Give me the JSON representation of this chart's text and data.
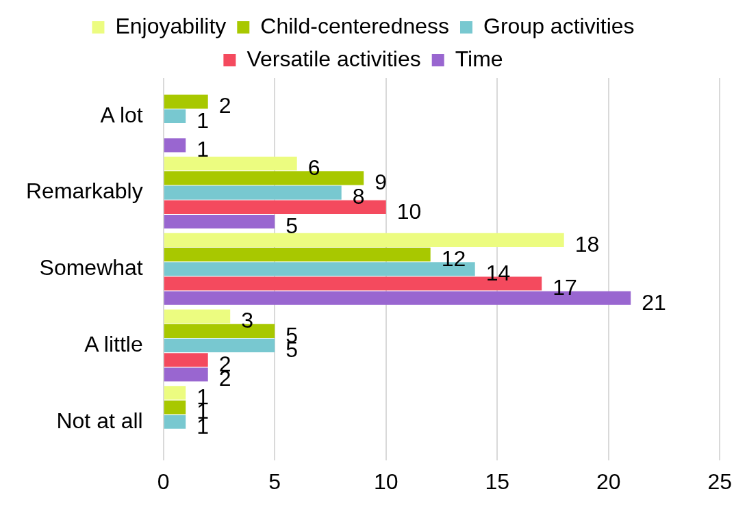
{
  "chart_data": {
    "type": "bar",
    "orientation": "horizontal",
    "categories": [
      "A lot",
      "Remarkably",
      "Somewhat",
      "A little",
      "Not at all"
    ],
    "series": [
      {
        "name": "Enjoyability",
        "color": "#ecfc80",
        "values": [
          null,
          6,
          18,
          3,
          1
        ]
      },
      {
        "name": "Child-centeredness",
        "color": "#a8c800",
        "values": [
          2,
          9,
          12,
          5,
          1
        ]
      },
      {
        "name": "Group activities",
        "color": "#78c8d0",
        "values": [
          1,
          8,
          14,
          5,
          1
        ]
      },
      {
        "name": "Versatile activities",
        "color": "#f44a5e",
        "values": [
          null,
          10,
          17,
          2,
          null
        ]
      },
      {
        "name": "Time",
        "color": "#9966d0",
        "values": [
          1,
          5,
          21,
          2,
          null
        ]
      }
    ],
    "xlim": [
      0,
      25
    ],
    "xticks": [
      0,
      5,
      10,
      15,
      20,
      25
    ],
    "grid": "x",
    "legend": "top",
    "data_labels": true
  }
}
